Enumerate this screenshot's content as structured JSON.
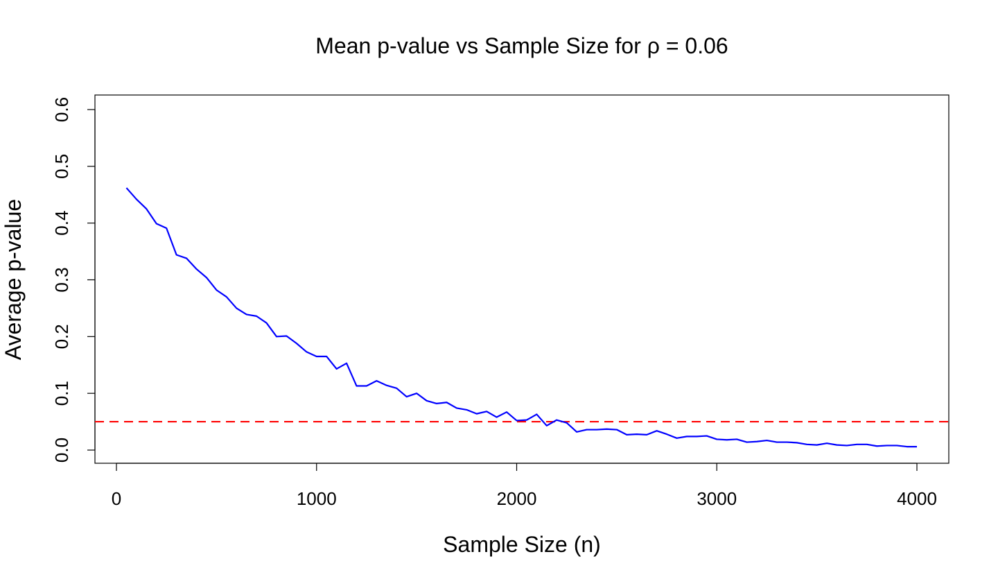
{
  "chart_data": {
    "type": "line",
    "title": "Mean p-value vs Sample Size for ρ = 0.06",
    "xlabel": "Sample Size (n)",
    "ylabel": "Average p-value",
    "xlim": [
      0,
      4000
    ],
    "ylim": [
      0.0,
      0.6
    ],
    "x_ticks": [
      0,
      1000,
      2000,
      3000,
      4000
    ],
    "x_tick_labels": [
      "0",
      "1000",
      "2000",
      "3000",
      "4000"
    ],
    "y_ticks": [
      0.0,
      0.1,
      0.2,
      0.3,
      0.4,
      0.5,
      0.6
    ],
    "y_tick_labels": [
      "0.0",
      "0.1",
      "0.2",
      "0.3",
      "0.4",
      "0.5",
      "0.6"
    ],
    "grid": false,
    "legend": "none",
    "series": [
      {
        "color": "#0000ff",
        "x": [
          50,
          100,
          150,
          200,
          250,
          300,
          350,
          400,
          450,
          500,
          550,
          600,
          650,
          700,
          750,
          800,
          850,
          900,
          950,
          1000,
          1050,
          1100,
          1150,
          1200,
          1250,
          1300,
          1350,
          1400,
          1450,
          1500,
          1550,
          1600,
          1650,
          1700,
          1750,
          1800,
          1850,
          1900,
          1950,
          2000,
          2050,
          2100,
          2150,
          2200,
          2250,
          2300,
          2350,
          2400,
          2450,
          2500,
          2550,
          2600,
          2650,
          2700,
          2750,
          2800,
          2850,
          2900,
          2950,
          3000,
          3050,
          3100,
          3150,
          3200,
          3250,
          3300,
          3350,
          3400,
          3450,
          3500,
          3550,
          3600,
          3650,
          3700,
          3750,
          3800,
          3850,
          3900,
          3950,
          4000
        ],
        "y": [
          0.462,
          0.442,
          0.425,
          0.399,
          0.391,
          0.344,
          0.338,
          0.319,
          0.304,
          0.282,
          0.27,
          0.25,
          0.239,
          0.236,
          0.224,
          0.2,
          0.201,
          0.188,
          0.173,
          0.165,
          0.165,
          0.143,
          0.153,
          0.113,
          0.113,
          0.122,
          0.114,
          0.109,
          0.094,
          0.1,
          0.087,
          0.082,
          0.084,
          0.074,
          0.071,
          0.064,
          0.068,
          0.058,
          0.067,
          0.052,
          0.053,
          0.063,
          0.043,
          0.053,
          0.048,
          0.032,
          0.036,
          0.036,
          0.037,
          0.036,
          0.027,
          0.028,
          0.027,
          0.034,
          0.028,
          0.021,
          0.024,
          0.024,
          0.025,
          0.019,
          0.018,
          0.019,
          0.014,
          0.015,
          0.017,
          0.014,
          0.014,
          0.013,
          0.01,
          0.009,
          0.012,
          0.009,
          0.008,
          0.01,
          0.01,
          0.007,
          0.008,
          0.008,
          0.006,
          0.006
        ]
      }
    ],
    "reference_lines": [
      {
        "orientation": "horizontal",
        "y": 0.05,
        "color": "#ff0000",
        "style": "dashed"
      }
    ]
  }
}
